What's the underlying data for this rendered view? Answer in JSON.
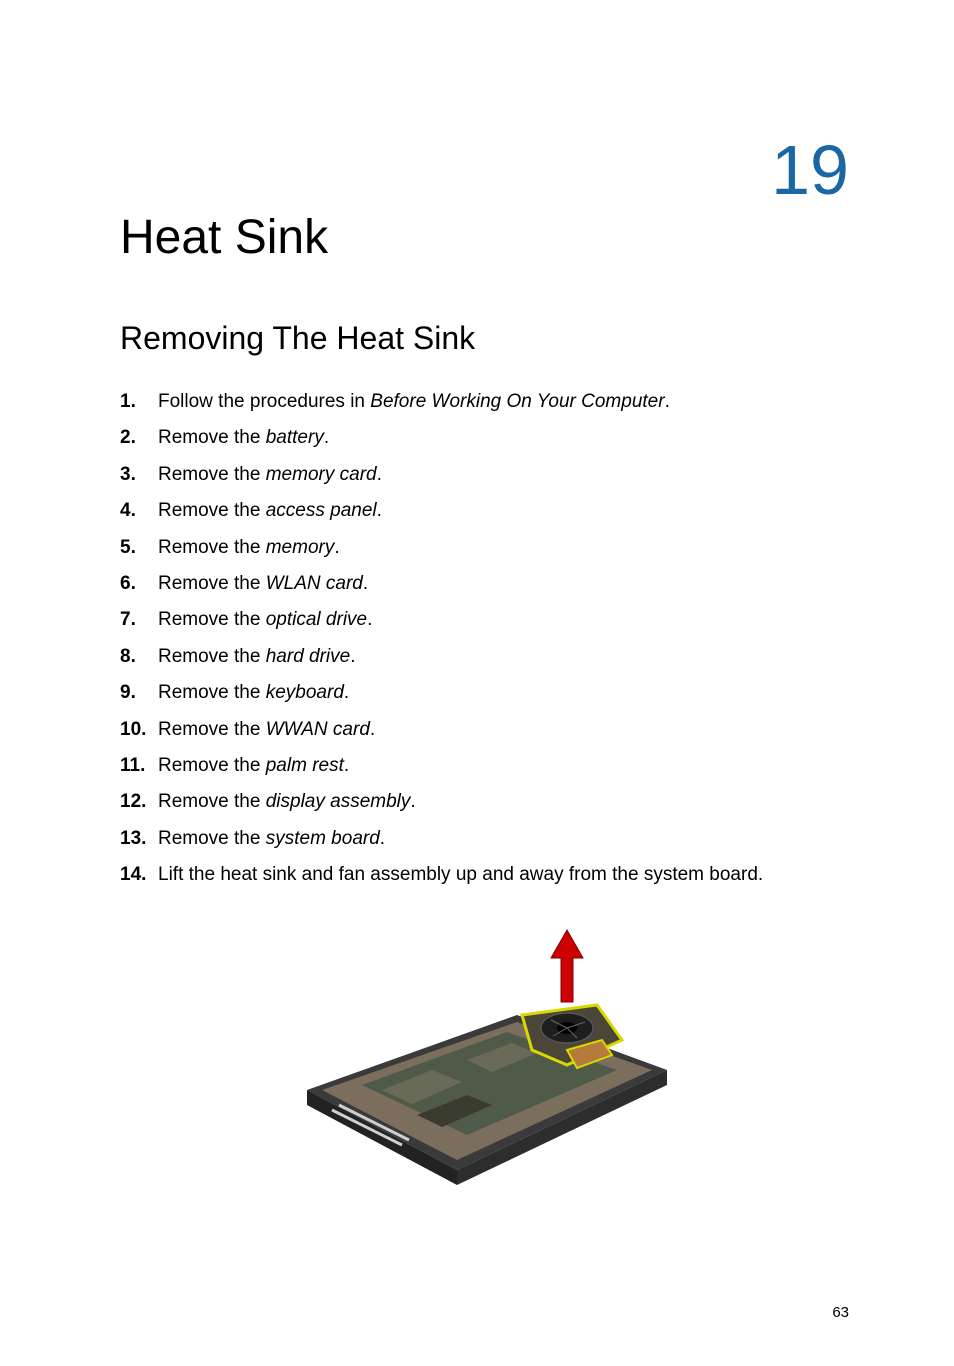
{
  "chapter_number": "19",
  "main_title": "Heat Sink",
  "sub_title": "Removing The Heat Sink",
  "page_number": "63",
  "colors": {
    "accent": "#1a67a3",
    "text": "#000000",
    "background": "#ffffff"
  },
  "typography": {
    "chapter_number_fontsize": 70,
    "main_title_fontsize": 48,
    "sub_title_fontsize": 32,
    "body_fontsize": 19,
    "page_number_fontsize": 15
  },
  "steps": [
    {
      "num": "1.",
      "prefix": "Follow the procedures in ",
      "italic": "Before Working On Your Computer",
      "suffix": "."
    },
    {
      "num": "2.",
      "prefix": "Remove the ",
      "italic": "battery",
      "suffix": "."
    },
    {
      "num": "3.",
      "prefix": "Remove the ",
      "italic": "memory card",
      "suffix": "."
    },
    {
      "num": "4.",
      "prefix": "Remove the ",
      "italic": "access panel",
      "suffix": "."
    },
    {
      "num": "5.",
      "prefix": "Remove the ",
      "italic": "memory",
      "suffix": "."
    },
    {
      "num": "6.",
      "prefix": "Remove the ",
      "italic": "WLAN card",
      "suffix": "."
    },
    {
      "num": "7.",
      "prefix": "Remove the ",
      "italic": "optical drive",
      "suffix": "."
    },
    {
      "num": "8.",
      "prefix": "Remove the ",
      "italic": "hard drive",
      "suffix": "."
    },
    {
      "num": "9.",
      "prefix": "Remove the ",
      "italic": "keyboard",
      "suffix": "."
    },
    {
      "num": "10.",
      "prefix": "Remove the ",
      "italic": "WWAN card",
      "suffix": "."
    },
    {
      "num": "11.",
      "prefix": "Remove the ",
      "italic": "palm rest",
      "suffix": "."
    },
    {
      "num": "12.",
      "prefix": "Remove the ",
      "italic": "display assembly",
      "suffix": "."
    },
    {
      "num": "13.",
      "prefix": "Remove the ",
      "italic": "system board",
      "suffix": "."
    },
    {
      "num": "14.",
      "prefix": "Lift the heat sink and fan assembly up and away from the system board.",
      "italic": "",
      "suffix": ""
    }
  ],
  "figure": {
    "description": "laptop-base-heatsink-removal-illustration",
    "base_color": "#3a3a3a",
    "inner_color": "#7b6e5c",
    "circuit_color": "#505a48",
    "fan_color": "#2b2b2b",
    "highlight_color": "#d9d900",
    "arrow_color": "#cc0000"
  }
}
